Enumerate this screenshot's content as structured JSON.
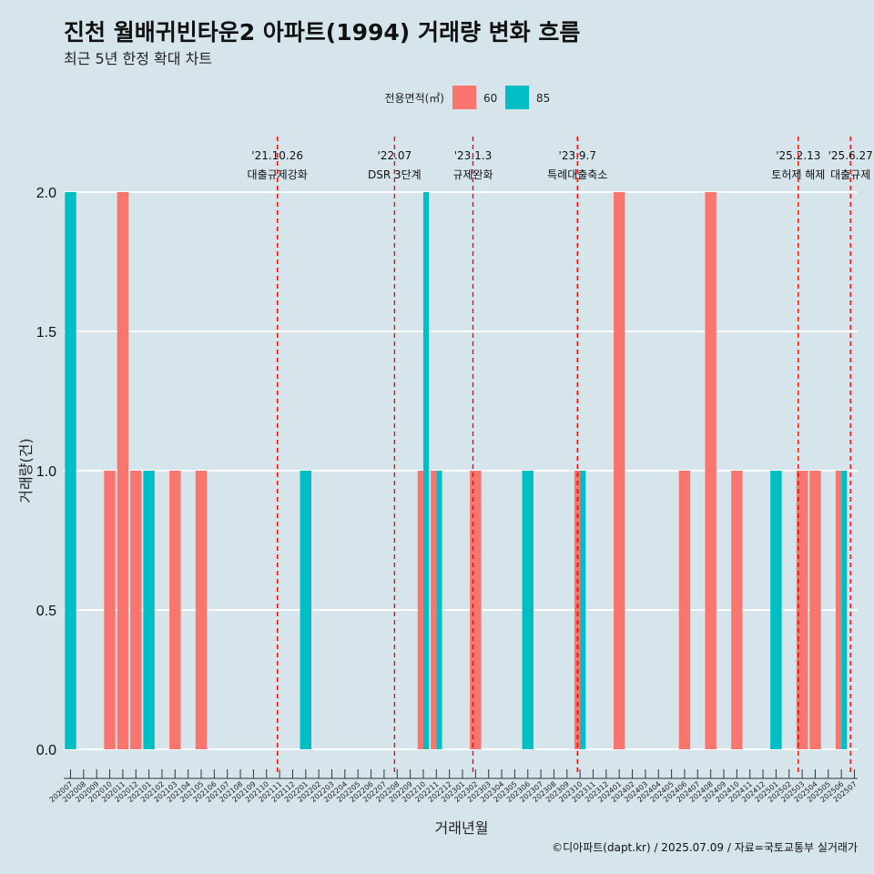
{
  "chart_data": {
    "type": "bar",
    "title": "진천 월배귀빈타운2 아파트(1994) 거래량 변화 흐름",
    "subtitle": "최근 5년 한정 확대 차트",
    "xlabel": "거래년월",
    "ylabel": "거래량(건)",
    "ylim": [
      0,
      2
    ],
    "yticks": [
      "0.0",
      "0.5",
      "1.0",
      "1.5",
      "2.0"
    ],
    "legend": {
      "title": "전용면적(㎡)",
      "position": "top"
    },
    "categories": [
      "202007",
      "202008",
      "202009",
      "202010",
      "202011",
      "202012",
      "202101",
      "202102",
      "202103",
      "202104",
      "202105",
      "202106",
      "202107",
      "202108",
      "202109",
      "202110",
      "202111",
      "202112",
      "202201",
      "202202",
      "202203",
      "202204",
      "202205",
      "202206",
      "202207",
      "202208",
      "202209",
      "202210",
      "202211",
      "202212",
      "202301",
      "202302",
      "202303",
      "202304",
      "202305",
      "202306",
      "202307",
      "202308",
      "202309",
      "202310",
      "202311",
      "202312",
      "202401",
      "202402",
      "202403",
      "202404",
      "202405",
      "202406",
      "202407",
      "202408",
      "202409",
      "202410",
      "202411",
      "202412",
      "202501",
      "202502",
      "202503",
      "202504",
      "202505",
      "202506",
      "202507"
    ],
    "series": [
      {
        "name": "60",
        "color": "#f8766d",
        "values": [
          0,
          0,
          0,
          1,
          2,
          1,
          0,
          0,
          1,
          0,
          1,
          0,
          0,
          0,
          0,
          0,
          0,
          0,
          0,
          0,
          0,
          0,
          0,
          0,
          0,
          0,
          0,
          1,
          1,
          0,
          0,
          1,
          0,
          0,
          0,
          0,
          0,
          0,
          0,
          1,
          0,
          0,
          2,
          0,
          0,
          0,
          0,
          1,
          0,
          2,
          0,
          1,
          0,
          0,
          0,
          0,
          1,
          1,
          0,
          1,
          0
        ]
      },
      {
        "name": "85",
        "color": "#00bfc4",
        "values": [
          2,
          0,
          0,
          0,
          0,
          0,
          1,
          0,
          0,
          0,
          0,
          0,
          0,
          0,
          0,
          0,
          0,
          0,
          1,
          0,
          0,
          0,
          0,
          0,
          0,
          0,
          0,
          2,
          1,
          0,
          0,
          0,
          0,
          0,
          0,
          1,
          0,
          0,
          0,
          1,
          0,
          0,
          0,
          0,
          0,
          0,
          0,
          0,
          0,
          0,
          0,
          0,
          0,
          0,
          1,
          0,
          0,
          0,
          0,
          1,
          0
        ]
      }
    ],
    "events": [
      {
        "date": "'21.10.26",
        "label": "대출규제강화",
        "month_index": 15.83
      },
      {
        "date": "'22.07",
        "label": "DSR 3단계",
        "month_index": 24.8
      },
      {
        "date": "'23.1.3",
        "label": "규제완화",
        "month_index": 30.8
      },
      {
        "date": "'23.9.7",
        "label": "특례대출축소",
        "month_index": 38.8
      },
      {
        "date": "'25.2.13",
        "label": "토허제 해제",
        "month_index": 55.7
      },
      {
        "date": "'25.6.27",
        "label": "대출규제",
        "month_index": 59.7
      }
    ]
  },
  "caption": "©디아파트(dapt.kr) / 2025.07.09 / 자료=국토교통부 실거래가"
}
